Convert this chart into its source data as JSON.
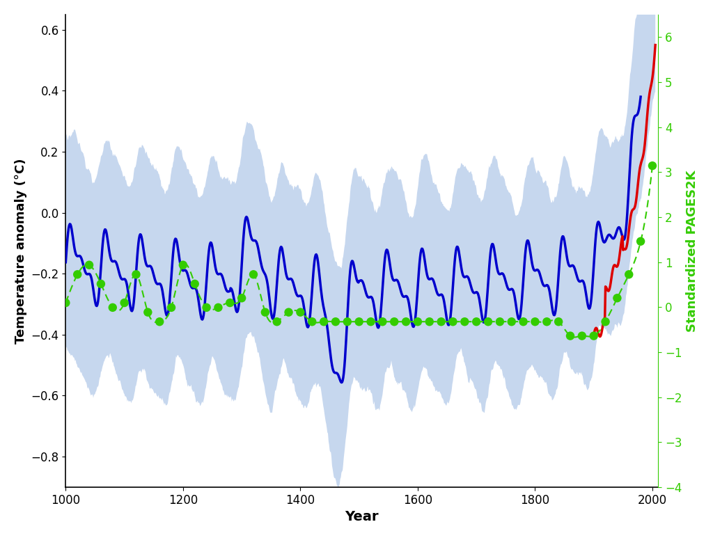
{
  "title": "",
  "xlabel": "Year",
  "ylabel_left": "Temperature anomaly (°C)",
  "ylabel_right": "Standardized PAGES2K",
  "xlim": [
    1000,
    2010
  ],
  "ylim_left": [
    -0.9,
    0.65
  ],
  "ylim_right": [
    -4,
    6.5
  ],
  "background_color": "#ffffff",
  "shade_color": "#aec6e8",
  "blue_line_color": "#0000cc",
  "red_line_color": "#dd0000",
  "green_color": "#33cc00",
  "left_yticks": [
    -0.8,
    -0.6,
    -0.4,
    -0.2,
    0,
    0.2,
    0.4,
    0.6
  ],
  "right_yticks": [
    -4,
    -3,
    -2,
    -1,
    0,
    1,
    2,
    3,
    4,
    5,
    6
  ],
  "xticks": [
    1000,
    1200,
    1400,
    1600,
    1800,
    2000
  ]
}
